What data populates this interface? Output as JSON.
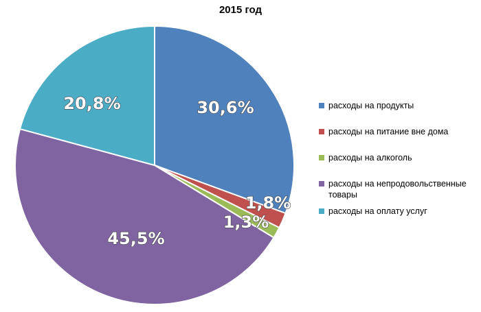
{
  "chart_data": {
    "type": "pie",
    "title": "2015 год",
    "slices": [
      {
        "label": "расходы на продукты",
        "value": 30.6,
        "display": "30,6%",
        "color": "#4F81BD"
      },
      {
        "label": "расходы на питание вне дома",
        "value": 1.8,
        "display": "1,8%",
        "color": "#C0504D"
      },
      {
        "label": "расходы на алкоголь",
        "value": 1.3,
        "display": "1,3%",
        "color": "#9BBB59"
      },
      {
        "label": "расходы на непродовольственные товары",
        "value": 45.5,
        "display": "45,5%",
        "color": "#8064A2"
      },
      {
        "label": "расходы на оплату услуг",
        "value": 20.8,
        "display": "20,8%",
        "color": "#4BACC6"
      }
    ],
    "legend_position": "right"
  }
}
